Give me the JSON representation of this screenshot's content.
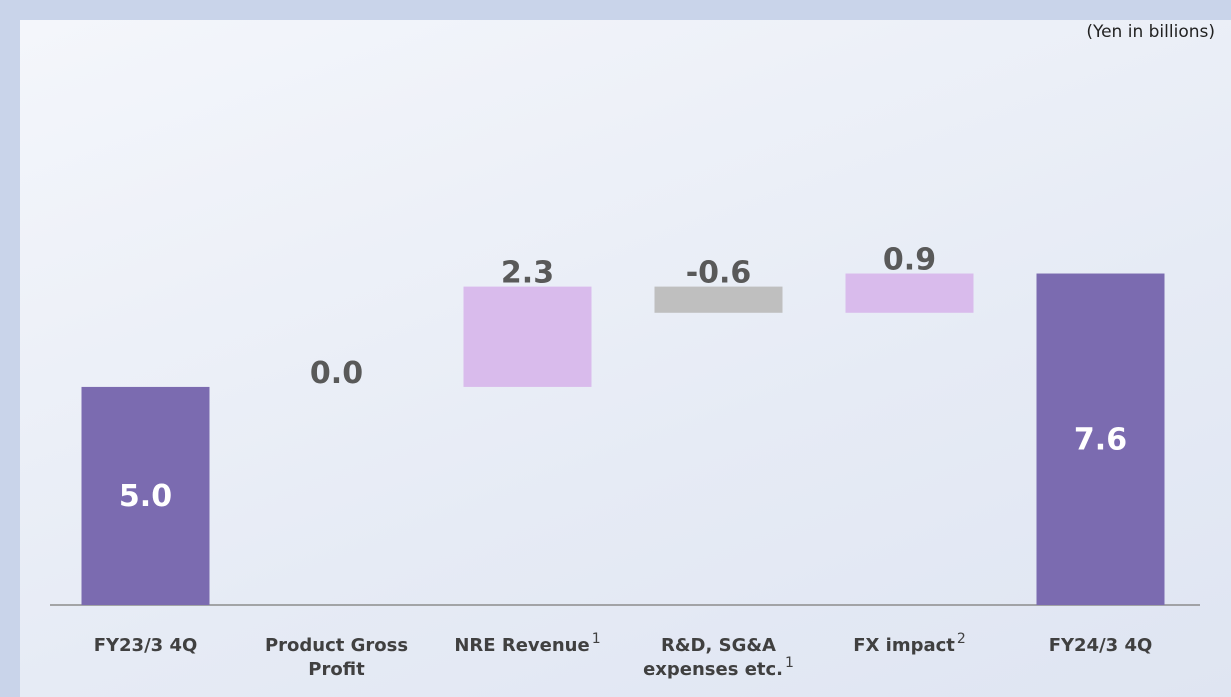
{
  "chart_data": {
    "type": "waterfall",
    "unit_note": "(Yen in billions)",
    "categories": [
      "FY23/3 4Q",
      "Product Gross Profit",
      "NRE Revenue",
      "R&D, SG&A expenses etc.",
      "FX impact",
      "FY24/3 4Q"
    ],
    "category_footnotes": [
      null,
      null,
      "1",
      "1",
      "2",
      null
    ],
    "values": [
      5.0,
      0.0,
      2.3,
      -0.6,
      0.9,
      7.6
    ],
    "value_labels": [
      "5.0",
      "0.0",
      "2.3",
      "-0.6",
      "0.9",
      "7.6"
    ],
    "is_total": [
      true,
      false,
      false,
      false,
      false,
      true
    ],
    "total_color": "#7b6bb0",
    "increase_color": "#d9bbec",
    "decrease_color": "#bfbfbf",
    "ylim": [
      0,
      13
    ]
  }
}
